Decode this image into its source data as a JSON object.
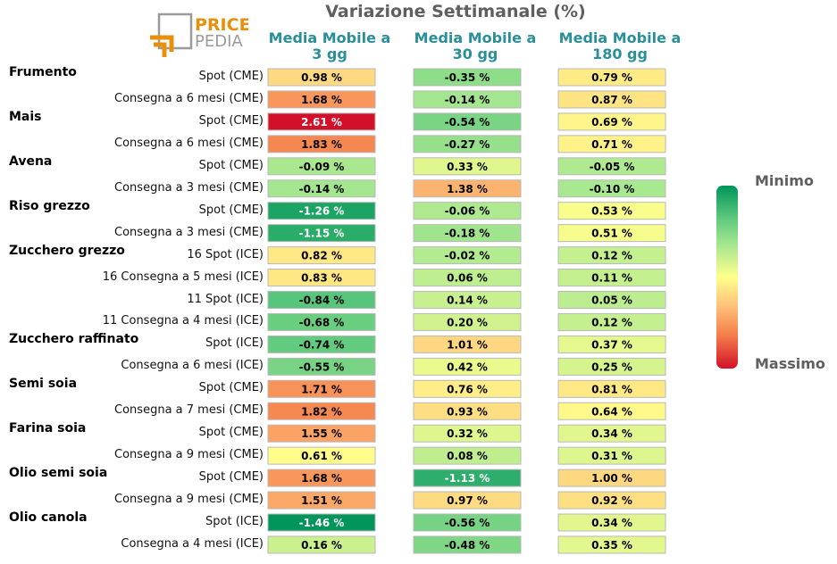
{
  "chart_data": {
    "type": "heatmap",
    "title": "Variazione Settimanale (%)",
    "columns": [
      "Media Mobile a 3 gg",
      "Media Mobile a 30 gg",
      "Media Mobile a 180 gg"
    ],
    "column_lines": [
      [
        "Media Mobile a",
        "3 gg"
      ],
      [
        "Media Mobile a",
        "30 gg"
      ],
      [
        "Media Mobile a",
        "180 gg"
      ]
    ],
    "legend": {
      "min_label": "Minimo",
      "max_label": "Massimo"
    },
    "groups": [
      {
        "name": "Frumento",
        "rows": [
          {
            "label": "Spot (CME)",
            "values": [
              0.98,
              -0.35,
              0.79
            ]
          },
          {
            "label": "Consegna a 6 mesi (CME)",
            "values": [
              1.68,
              -0.14,
              0.87
            ]
          }
        ]
      },
      {
        "name": "Mais",
        "rows": [
          {
            "label": "Spot (CME)",
            "values": [
              2.61,
              -0.54,
              0.69
            ]
          },
          {
            "label": "Consegna a 6 mesi (CME)",
            "values": [
              1.83,
              -0.27,
              0.71
            ]
          }
        ]
      },
      {
        "name": "Avena",
        "rows": [
          {
            "label": "Spot (CME)",
            "values": [
              -0.09,
              0.33,
              -0.05
            ]
          },
          {
            "label": "Consegna a 3 mesi (CME)",
            "values": [
              -0.14,
              1.38,
              -0.1
            ]
          }
        ]
      },
      {
        "name": "Riso grezzo",
        "rows": [
          {
            "label": "Spot (CME)",
            "values": [
              -1.26,
              -0.06,
              0.53
            ]
          },
          {
            "label": "Consegna a 3 mesi (CME)",
            "values": [
              -1.15,
              -0.18,
              0.51
            ]
          }
        ]
      },
      {
        "name": "Zucchero grezzo",
        "rows": [
          {
            "label": "16 Spot (ICE)",
            "values": [
              0.82,
              -0.02,
              0.12
            ]
          },
          {
            "label": "16 Consegna a 5 mesi (ICE)",
            "values": [
              0.83,
              0.06,
              0.11
            ]
          },
          {
            "label": "11 Spot (ICE)",
            "values": [
              -0.84,
              0.14,
              0.05
            ]
          },
          {
            "label": "11 Consegna a 4 mesi (ICE)",
            "values": [
              -0.68,
              0.2,
              0.12
            ]
          }
        ]
      },
      {
        "name": "Zucchero raffinato",
        "rows": [
          {
            "label": "Spot (ICE)",
            "values": [
              -0.74,
              1.01,
              0.37
            ]
          },
          {
            "label": "Consegna a 6 mesi (ICE)",
            "values": [
              -0.55,
              0.42,
              0.25
            ]
          }
        ]
      },
      {
        "name": "Semi soia",
        "rows": [
          {
            "label": "Spot (CME)",
            "values": [
              1.71,
              0.76,
              0.81
            ]
          },
          {
            "label": "Consegna a 7 mesi (CME)",
            "values": [
              1.82,
              0.93,
              0.64
            ]
          }
        ]
      },
      {
        "name": "Farina soia",
        "rows": [
          {
            "label": "Spot (CME)",
            "values": [
              1.55,
              0.32,
              0.34
            ]
          },
          {
            "label": "Consegna a 9 mesi (CME)",
            "values": [
              0.61,
              0.08,
              0.31
            ]
          }
        ]
      },
      {
        "name": "Olio semi soia",
        "rows": [
          {
            "label": "Spot (CME)",
            "values": [
              1.68,
              -1.13,
              1.0
            ]
          },
          {
            "label": "Consegna a 9 mesi (CME)",
            "values": [
              1.51,
              0.97,
              0.92
            ]
          }
        ]
      },
      {
        "name": "Olio canola",
        "rows": [
          {
            "label": "Spot (ICE)",
            "values": [
              -1.46,
              -0.56,
              0.34
            ]
          },
          {
            "label": "Consegna a 4 mesi (ICE)",
            "values": [
              0.16,
              -0.48,
              0.35
            ]
          }
        ]
      }
    ]
  },
  "logo": {
    "line1": "PRICE",
    "line2": "PEDIA",
    "accent_color": "#e8900c",
    "gray_color": "#9a9a9a"
  },
  "palette": [
    "#00955a",
    "#5fc97e",
    "#a8e890",
    "#ffff8c",
    "#fec079",
    "#f47d4a",
    "#d3102a"
  ]
}
